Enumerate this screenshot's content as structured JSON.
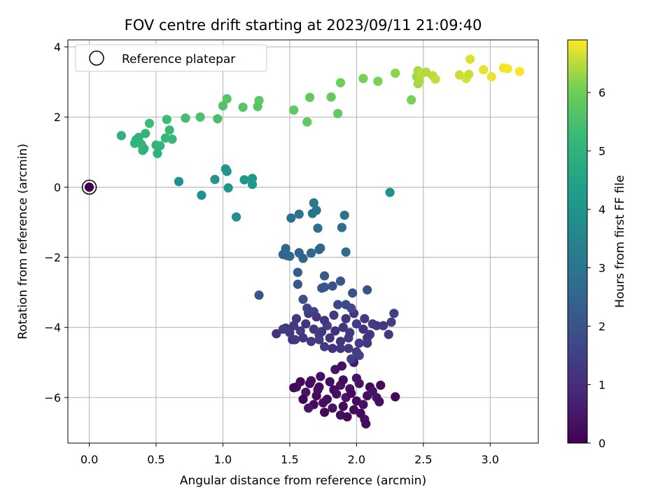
{
  "chart_data": {
    "type": "scatter",
    "title": "FOV centre drift starting at 2023/09/11 21:09:40",
    "xlabel": "Angular distance from reference (arcmin)",
    "ylabel": "Rotation from reference (arcmin)",
    "xlim": [
      -0.16,
      3.36
    ],
    "ylim": [
      -7.3,
      4.2
    ],
    "xticks": [
      "0.0",
      "0.5",
      "1.0",
      "1.5",
      "2.0",
      "2.5",
      "3.0"
    ],
    "yticks": [
      "−6",
      "−4",
      "−2",
      "0",
      "2",
      "4"
    ],
    "grid": true,
    "legend": {
      "placement": "top-left",
      "entries": [
        "Reference platepar"
      ]
    },
    "reference_point": {
      "x": 0.0,
      "y": 0.0,
      "hours": 0.0
    },
    "colorbar": {
      "label": "Hours from first FF file",
      "min": 0,
      "max": 6.9,
      "ticks": [
        "0",
        "1",
        "2",
        "3",
        "4",
        "5",
        "6"
      ],
      "colormap": "viridis"
    },
    "points": [
      [
        1.58,
        -5.55,
        0.15
      ],
      [
        1.65,
        -5.6,
        0.2
      ],
      [
        1.72,
        -5.7,
        0.25
      ],
      [
        1.8,
        -5.55,
        0.3
      ],
      [
        1.88,
        -5.65,
        0.35
      ],
      [
        1.95,
        -5.75,
        0.4
      ],
      [
        2.02,
        -5.6,
        0.45
      ],
      [
        2.1,
        -5.7,
        0.1
      ],
      [
        2.18,
        -5.65,
        0.2
      ],
      [
        1.55,
        -5.7,
        0.3
      ],
      [
        1.62,
        -5.85,
        0.4
      ],
      [
        1.7,
        -5.95,
        0.15
      ],
      [
        1.78,
        -6.05,
        0.25
      ],
      [
        1.85,
        -5.9,
        0.35
      ],
      [
        1.92,
        -6.0,
        0.45
      ],
      [
        2.0,
        -6.1,
        0.2
      ],
      [
        2.08,
        -5.95,
        0.3
      ],
      [
        2.15,
        -6.0,
        0.4
      ],
      [
        1.6,
        -6.05,
        0.1
      ],
      [
        1.68,
        -6.2,
        0.2
      ],
      [
        1.75,
        -6.15,
        0.3
      ],
      [
        1.82,
        -6.3,
        0.4
      ],
      [
        1.9,
        -6.25,
        0.15
      ],
      [
        1.98,
        -6.35,
        0.25
      ],
      [
        2.05,
        -6.2,
        0.35
      ],
      [
        1.64,
        -6.3,
        0.45
      ],
      [
        1.76,
        -6.42,
        0.2
      ],
      [
        1.88,
        -6.5,
        0.3
      ],
      [
        2.06,
        -6.62,
        0.4
      ],
      [
        1.93,
        -6.55,
        0.1
      ],
      [
        2.07,
        -6.75,
        0.3
      ],
      [
        2.03,
        -6.45,
        0.2
      ],
      [
        1.73,
        -5.4,
        0.35
      ],
      [
        1.9,
        -5.5,
        0.25
      ],
      [
        2.0,
        -5.45,
        0.45
      ],
      [
        1.84,
        -5.2,
        0.4
      ],
      [
        1.89,
        -5.1,
        0.35
      ],
      [
        1.53,
        -5.72,
        0.15
      ],
      [
        2.29,
        -5.98,
        0.2
      ],
      [
        2.17,
        -6.12,
        0.3
      ],
      [
        1.66,
        -5.52,
        0.28
      ],
      [
        1.71,
        -5.78,
        0.32
      ],
      [
        1.83,
        -5.78,
        0.22
      ],
      [
        1.96,
        -5.88,
        0.18
      ],
      [
        2.12,
        -5.82,
        0.42
      ],
      [
        1.98,
        -5.0,
        0.55
      ],
      [
        1.4,
        -4.18,
        1.1
      ],
      [
        1.47,
        -4.02,
        1.2
      ],
      [
        1.53,
        -3.95,
        1.3
      ],
      [
        1.58,
        -4.1,
        1.4
      ],
      [
        1.62,
        -3.9,
        1.15
      ],
      [
        1.68,
        -4.05,
        1.25
      ],
      [
        1.72,
        -4.2,
        1.35
      ],
      [
        1.78,
        -3.95,
        1.45
      ],
      [
        1.84,
        -4.1,
        1.05
      ],
      [
        1.9,
        -4.0,
        1.2
      ],
      [
        1.95,
        -4.15,
        1.3
      ],
      [
        2.0,
        -3.9,
        1.4
      ],
      [
        2.05,
        -4.05,
        1.15
      ],
      [
        2.1,
        -4.2,
        1.25
      ],
      [
        2.15,
        -3.95,
        1.35
      ],
      [
        1.52,
        -4.35,
        1.1
      ],
      [
        1.6,
        -4.3,
        1.2
      ],
      [
        1.66,
        -4.4,
        1.3
      ],
      [
        1.72,
        -4.35,
        1.4
      ],
      [
        1.8,
        -4.3,
        1.15
      ],
      [
        1.88,
        -4.4,
        1.25
      ],
      [
        1.94,
        -4.3,
        1.35
      ],
      [
        2.02,
        -4.45,
        1.45
      ],
      [
        2.08,
        -4.3,
        1.1
      ],
      [
        1.55,
        -3.75,
        1.3
      ],
      [
        1.64,
        -3.6,
        1.4
      ],
      [
        1.7,
        -3.7,
        1.2
      ],
      [
        1.76,
        -3.8,
        1.25
      ],
      [
        1.83,
        -3.65,
        1.35
      ],
      [
        1.92,
        -3.75,
        1.15
      ],
      [
        1.98,
        -3.6,
        1.2
      ],
      [
        2.06,
        -3.75,
        1.3
      ],
      [
        2.12,
        -3.9,
        1.4
      ],
      [
        1.82,
        -4.6,
        1.1
      ],
      [
        1.88,
        -4.6,
        1.2
      ],
      [
        1.94,
        -4.6,
        1.3
      ],
      [
        2.0,
        -4.7,
        1.4
      ],
      [
        1.96,
        -4.9,
        1.45
      ],
      [
        2.02,
        -4.8,
        1.5
      ],
      [
        1.76,
        -4.55,
        1.35
      ],
      [
        2.2,
        -3.95,
        1.3
      ],
      [
        2.24,
        -4.2,
        1.25
      ],
      [
        2.28,
        -3.6,
        1.5
      ],
      [
        2.26,
        -3.85,
        1.45
      ],
      [
        1.63,
        -3.45,
        1.6
      ],
      [
        1.68,
        -3.55,
        1.55
      ],
      [
        1.45,
        -4.05,
        1.4
      ],
      [
        1.5,
        -4.15,
        1.35
      ],
      [
        1.54,
        -4.35,
        1.3
      ],
      [
        1.86,
        -3.35,
        1.7
      ],
      [
        1.92,
        -3.35,
        1.8
      ],
      [
        1.96,
        -3.45,
        1.75
      ],
      [
        2.08,
        -4.45,
        1.25
      ],
      [
        1.74,
        -4.12,
        1.28
      ],
      [
        1.27,
        -3.08,
        2.05
      ],
      [
        1.6,
        -3.2,
        1.9
      ],
      [
        1.74,
        -2.88,
        2.1
      ],
      [
        1.76,
        -2.85,
        2.05
      ],
      [
        1.82,
        -2.82,
        2.0
      ],
      [
        1.88,
        -2.68,
        2.15
      ],
      [
        1.97,
        -3.02,
        1.95
      ],
      [
        2.08,
        -2.93,
        2.0
      ],
      [
        1.56,
        -2.77,
        2.1
      ],
      [
        1.76,
        -2.53,
        2.2
      ],
      [
        1.56,
        -2.43,
        2.3
      ],
      [
        1.45,
        -1.92,
        2.5
      ],
      [
        1.48,
        -1.95,
        2.45
      ],
      [
        1.5,
        -1.97,
        2.6
      ],
      [
        1.6,
        -2.03,
        2.5
      ],
      [
        1.66,
        -1.88,
        2.55
      ],
      [
        1.72,
        -1.78,
        2.6
      ],
      [
        1.73,
        -1.74,
        2.5
      ],
      [
        1.47,
        -1.75,
        2.55
      ],
      [
        1.57,
        -1.87,
        2.45
      ],
      [
        1.92,
        -1.85,
        2.7
      ],
      [
        1.89,
        -1.15,
        2.8
      ],
      [
        1.71,
        -1.17,
        2.85
      ],
      [
        1.51,
        -0.88,
        2.9
      ],
      [
        1.57,
        -0.77,
        3.0
      ],
      [
        1.67,
        -0.75,
        2.95
      ],
      [
        1.7,
        -0.66,
        3.05
      ],
      [
        1.68,
        -0.45,
        3.1
      ],
      [
        1.91,
        -0.8,
        3.0
      ],
      [
        2.25,
        -0.15,
        3.9
      ],
      [
        0.67,
        0.16,
        3.95
      ],
      [
        0.84,
        -0.23,
        3.9
      ],
      [
        0.94,
        0.22,
        4.0
      ],
      [
        1.02,
        0.52,
        4.0
      ],
      [
        1.03,
        0.45,
        4.05
      ],
      [
        1.04,
        -0.02,
        4.05
      ],
      [
        1.1,
        -0.85,
        3.9
      ],
      [
        1.16,
        0.21,
        4.1
      ],
      [
        1.22,
        0.25,
        4.1
      ],
      [
        1.22,
        0.08,
        4.15
      ],
      [
        0.24,
        1.47,
        5.0
      ],
      [
        0.34,
        1.25,
        5.05
      ],
      [
        0.35,
        1.35,
        5.1
      ],
      [
        0.37,
        1.42,
        5.0
      ],
      [
        0.39,
        1.22,
        5.15
      ],
      [
        0.4,
        1.05,
        5.1
      ],
      [
        0.41,
        1.1,
        5.0
      ],
      [
        0.42,
        1.53,
        5.1
      ],
      [
        0.45,
        1.82,
        5.3
      ],
      [
        0.5,
        1.2,
        5.05
      ],
      [
        0.51,
        0.96,
        5.0
      ],
      [
        0.53,
        1.18,
        5.1
      ],
      [
        0.57,
        1.4,
        5.2
      ],
      [
        0.58,
        1.93,
        5.3
      ],
      [
        0.6,
        1.63,
        5.25
      ],
      [
        0.62,
        1.37,
        5.2
      ],
      [
        0.72,
        1.97,
        5.4
      ],
      [
        0.83,
        2.0,
        5.5
      ],
      [
        0.96,
        1.95,
        5.5
      ],
      [
        1.0,
        2.32,
        5.6
      ],
      [
        1.03,
        2.52,
        5.65
      ],
      [
        1.15,
        2.28,
        5.7
      ],
      [
        1.26,
        2.3,
        5.7
      ],
      [
        1.27,
        2.47,
        5.75
      ],
      [
        1.53,
        2.2,
        5.8
      ],
      [
        1.63,
        1.86,
        5.8
      ],
      [
        1.65,
        2.56,
        5.85
      ],
      [
        1.81,
        2.57,
        5.9
      ],
      [
        1.86,
        2.1,
        5.9
      ],
      [
        1.88,
        2.98,
        6.0
      ],
      [
        2.05,
        3.1,
        6.1
      ],
      [
        2.16,
        3.02,
        6.1
      ],
      [
        2.29,
        3.25,
        6.2
      ],
      [
        2.41,
        2.49,
        6.1
      ],
      [
        2.45,
        3.15,
        6.3
      ],
      [
        2.46,
        2.95,
        6.35
      ],
      [
        2.47,
        3.05,
        6.4
      ],
      [
        2.46,
        3.32,
        6.4
      ],
      [
        2.48,
        3.22,
        6.5
      ],
      [
        2.52,
        3.28,
        6.45
      ],
      [
        2.57,
        3.18,
        6.5
      ],
      [
        2.59,
        3.08,
        6.55
      ],
      [
        2.77,
        3.2,
        6.6
      ],
      [
        2.82,
        3.1,
        6.65
      ],
      [
        2.84,
        3.22,
        6.6
      ],
      [
        2.85,
        3.65,
        6.7
      ],
      [
        2.95,
        3.35,
        6.75
      ],
      [
        3.01,
        3.15,
        6.8
      ],
      [
        3.1,
        3.4,
        6.8
      ],
      [
        3.13,
        3.38,
        6.85
      ],
      [
        3.22,
        3.3,
        6.88
      ]
    ]
  }
}
